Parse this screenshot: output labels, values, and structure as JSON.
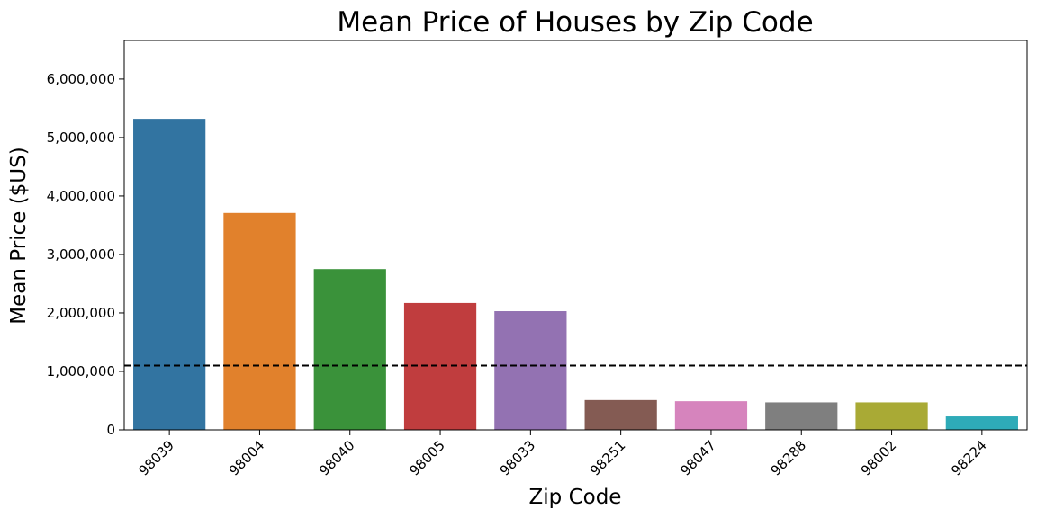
{
  "chart_data": {
    "type": "bar",
    "title": "Mean Price of Houses by Zip Code",
    "xlabel": "Zip Code",
    "ylabel": "Mean Price ($US)",
    "categories": [
      "98039",
      "98004",
      "98040",
      "98005",
      "98033",
      "98251",
      "98047",
      "98288",
      "98002",
      "98224"
    ],
    "values": [
      5320000,
      3710000,
      2750000,
      2170000,
      2030000,
      510000,
      490000,
      470000,
      470000,
      230000
    ],
    "colors": [
      "#3274a1",
      "#e1812c",
      "#3a923a",
      "#c03d3e",
      "#9372b2",
      "#845b53",
      "#d684bd",
      "#7f7f7f",
      "#a9aa35",
      "#2eabb8"
    ],
    "ylim": [
      0,
      6660000
    ],
    "yticks": [
      0,
      1000000,
      2000000,
      3000000,
      4000000,
      5000000,
      6000000
    ],
    "ytick_labels": [
      "0",
      "1,000,000",
      "2,000,000",
      "3,000,000",
      "4,000,000",
      "5,000,000",
      "6,000,000"
    ],
    "reference_line": {
      "value": 1100000,
      "style": "dashed",
      "color": "#000000"
    },
    "grid": false,
    "legend": "none"
  }
}
